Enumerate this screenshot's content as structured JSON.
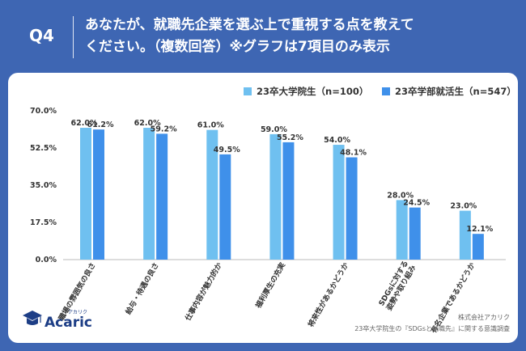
{
  "header": {
    "q_label": "Q4",
    "question_line1": "あなたが、就職先企業を選ぶ上で重視する点を教えて",
    "question_line2": "ください。（複数回答）※グラフは7項目のみ表示"
  },
  "colors": {
    "background": "#3e66b3",
    "series1": "#6fc0f0",
    "series2": "#3f90ea",
    "logo": "#1d3e86"
  },
  "chart_data": {
    "type": "bar",
    "categories": [
      "職場の雰囲気の良さ",
      "給与・待遇の良さ",
      "仕事内容が魅力的か",
      "福利厚生の充実",
      "将来性があるかどうか",
      "SDGsに対する 姿勢や取り組み",
      "有名企業であるかどうか"
    ],
    "series": [
      {
        "name": "23卒大学院生（n=100）",
        "values": [
          62.0,
          62.0,
          61.0,
          59.0,
          54.0,
          28.0,
          23.0
        ]
      },
      {
        "name": "23卒学部就活生（n=547）",
        "values": [
          61.2,
          59.2,
          49.5,
          55.2,
          48.1,
          24.5,
          12.1
        ]
      }
    ],
    "value_labels": [
      [
        "62.0%",
        "62.0%",
        "61.0%",
        "59.0%",
        "54.0%",
        "28.0%",
        "23.0%"
      ],
      [
        "61.2%",
        "59.2%",
        "49.5%",
        "55.2%",
        "48.1%",
        "24.5%",
        "12.1%"
      ]
    ],
    "ylim": [
      0,
      70
    ],
    "yticks": [
      "70.0%",
      "52.5%",
      "35.0%",
      "17.5%",
      "0.0%"
    ],
    "ytick_values": [
      70,
      52.5,
      35,
      17.5,
      0
    ],
    "legend_position": "top-right",
    "grid": false
  },
  "brand": {
    "logo_text": "Acaric",
    "logo_kana": "アカリク",
    "company": "株式会社アカリク",
    "source": "23卒大学院生の『SDGsと就職先』に関する意識調査"
  }
}
